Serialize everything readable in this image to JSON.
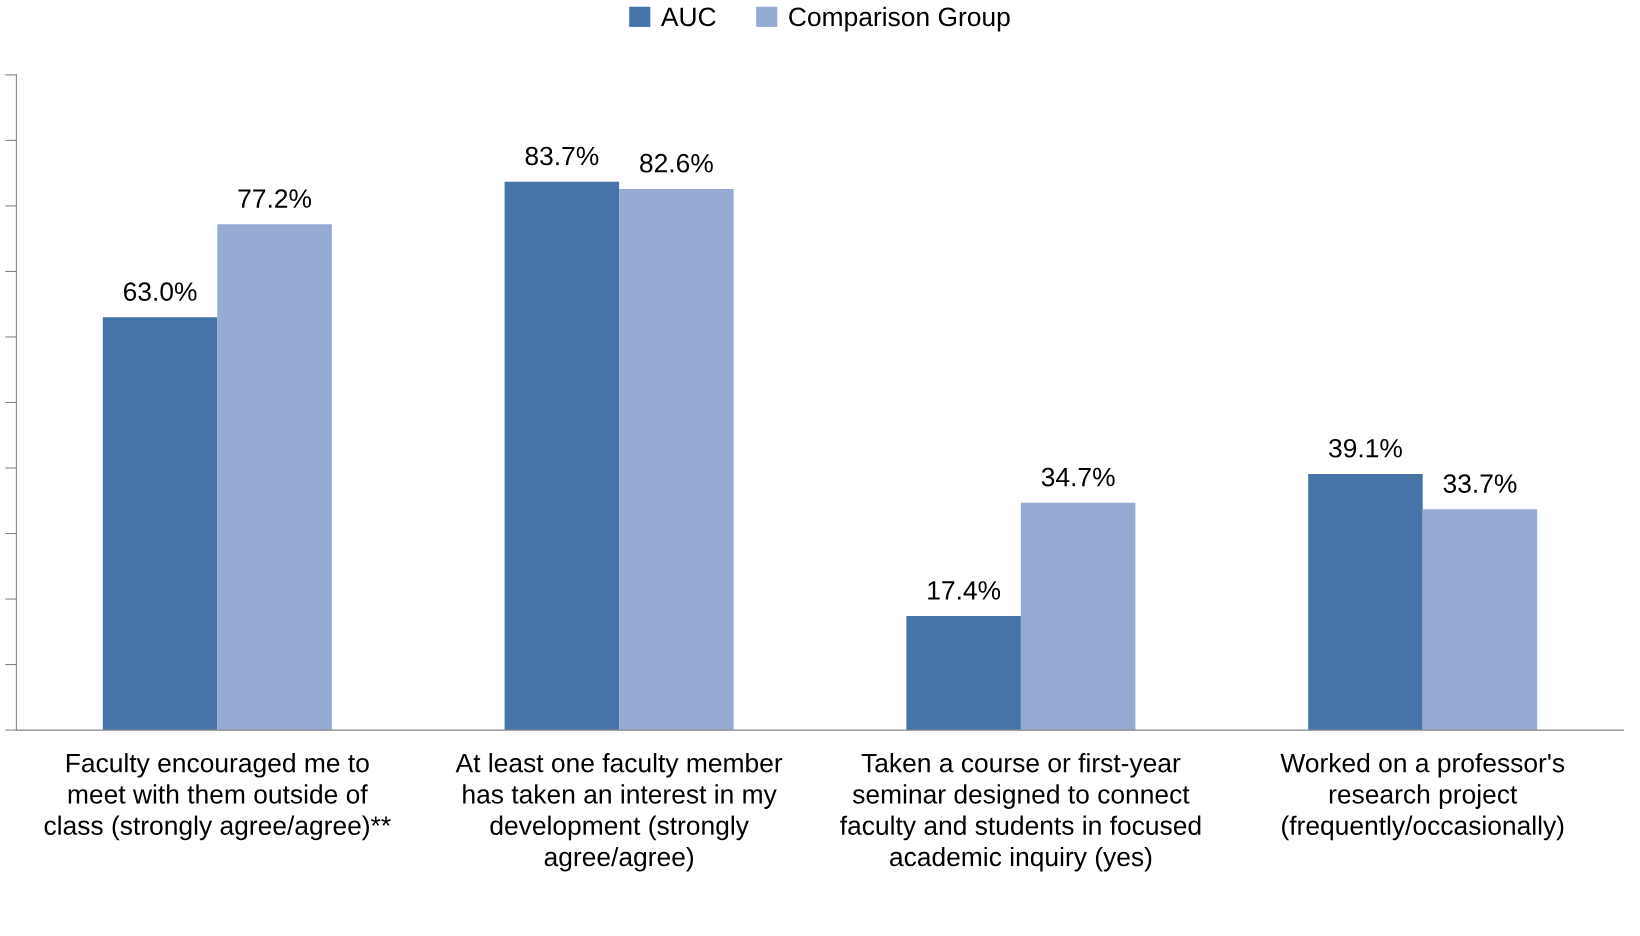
{
  "chart_data": {
    "type": "bar",
    "categories": [
      "Faculty encouraged me to\nmeet with them outside of\nclass (strongly agree/agree)**",
      "At least one faculty member\nhas taken an interest in my\ndevelopment (strongly\nagree/agree)",
      "Taken a course or first-year\nseminar designed to connect\nfaculty and students in focused\nacademic inquiry (yes)",
      "Worked on a professor's\nresearch project\n(frequently/occasionally)"
    ],
    "series": [
      {
        "name": "AUC",
        "color": "#4674a8",
        "values": [
          63.0,
          83.7,
          17.4,
          39.1
        ],
        "value_labels": [
          "63.0%",
          "83.7%",
          "17.4%",
          "39.1%"
        ]
      },
      {
        "name": "Comparison Group",
        "color": "#95abd3",
        "values": [
          77.2,
          82.6,
          34.7,
          33.7
        ],
        "value_labels": [
          "77.2%",
          "82.6%",
          "34.7%",
          "33.7%"
        ]
      }
    ],
    "ylim": [
      0,
      100
    ],
    "yticks": [
      {
        "value": 0,
        "label": null
      },
      {
        "value": 10,
        "label": null
      },
      {
        "value": 20,
        "label": null
      },
      {
        "value": 30,
        "label": null
      },
      {
        "value": 40,
        "label": null
      },
      {
        "value": 50,
        "label": null
      },
      {
        "value": 60,
        "label": null
      },
      {
        "value": 70,
        "label": null
      },
      {
        "value": 80,
        "label": null
      },
      {
        "value": 90,
        "label": null
      },
      {
        "value": 100,
        "label": null
      }
    ],
    "tick_labels": "x",
    "grid": false,
    "legend": "top"
  }
}
